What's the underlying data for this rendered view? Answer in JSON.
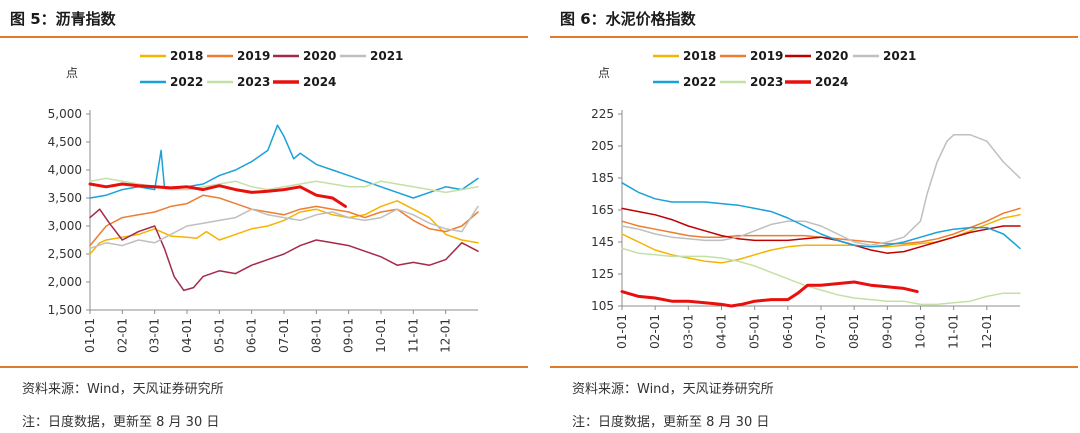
{
  "charts": [
    {
      "figure_title": "图 5：沥青指数",
      "source": "资料来源：Wind，天风证券研究所",
      "note": "注：日度数据，更新至 8 月 30 日"
    },
    {
      "figure_title": "图 6：水泥价格指数",
      "source": "资料来源：Wind，天风证券研究所",
      "note": "注：日度数据，更新至 8 月 30 日"
    }
  ],
  "chart_data": [
    {
      "type": "line",
      "ylabel": "点",
      "ylim": [
        1500,
        5000
      ],
      "yticks": [
        1500,
        2000,
        2500,
        3000,
        3500,
        4000,
        4500,
        5000
      ],
      "ytick_labels": [
        "1,500",
        "2,000",
        "2,500",
        "3,000",
        "3,500",
        "4,000",
        "4,500",
        "5,000"
      ],
      "x_categories": [
        "01-01",
        "02-01",
        "03-01",
        "04-01",
        "05-01",
        "06-01",
        "07-01",
        "08-01",
        "09-01",
        "10-01",
        "11-01",
        "12-01"
      ],
      "legend_position": "top",
      "grid": false,
      "series": [
        {
          "name": "2018",
          "color": "#F5B400",
          "width": 1.5,
          "x": [
            0,
            0.3,
            0.5,
            1,
            1.5,
            2,
            2.5,
            3,
            3.3,
            3.6,
            4,
            4.5,
            5,
            5.5,
            6,
            6.5,
            7,
            7.5,
            8,
            8.5,
            9,
            9.5,
            10,
            10.5,
            11,
            11.5,
            12
          ],
          "y": [
            2500,
            2700,
            2750,
            2800,
            2850,
            2950,
            2820,
            2800,
            2780,
            2900,
            2750,
            2850,
            2950,
            3000,
            3100,
            3250,
            3300,
            3200,
            3150,
            3200,
            3350,
            3450,
            3300,
            3150,
            2850,
            2750,
            2700
          ]
        },
        {
          "name": "2019",
          "color": "#ED7D31",
          "width": 1.5,
          "x": [
            0,
            0.5,
            1,
            1.5,
            2,
            2.5,
            3,
            3.5,
            4,
            4.5,
            5,
            5.5,
            6,
            6.5,
            7,
            7.5,
            8,
            8.5,
            9,
            9.5,
            10,
            10.5,
            11,
            11.5,
            12
          ],
          "y": [
            2650,
            3000,
            3150,
            3200,
            3250,
            3350,
            3400,
            3550,
            3500,
            3400,
            3300,
            3250,
            3200,
            3300,
            3350,
            3300,
            3250,
            3150,
            3250,
            3300,
            3100,
            2950,
            2900,
            3000,
            3250
          ]
        },
        {
          "name": "2020",
          "color": "#A52A4A",
          "width": 1.5,
          "x": [
            0,
            0.3,
            0.6,
            1,
            1.5,
            2,
            2.3,
            2.6,
            2.9,
            3.2,
            3.5,
            4,
            4.5,
            5,
            5.5,
            6,
            6.5,
            7,
            7.5,
            8,
            8.5,
            9,
            9.5,
            10,
            10.5,
            11,
            11.5,
            12
          ],
          "y": [
            3150,
            3300,
            3050,
            2750,
            2900,
            3000,
            2600,
            2100,
            1850,
            1900,
            2100,
            2200,
            2150,
            2300,
            2400,
            2500,
            2650,
            2750,
            2700,
            2650,
            2550,
            2450,
            2300,
            2350,
            2300,
            2400,
            2700,
            2550
          ]
        },
        {
          "name": "2021",
          "color": "#BFBFBF",
          "width": 1.5,
          "x": [
            0,
            0.5,
            1,
            1.5,
            2,
            2.5,
            3,
            3.5,
            4,
            4.5,
            5,
            5.5,
            6,
            6.5,
            7,
            7.5,
            8,
            8.5,
            9,
            9.5,
            10,
            10.5,
            11,
            11.5,
            12
          ],
          "y": [
            2600,
            2700,
            2650,
            2750,
            2700,
            2850,
            3000,
            3050,
            3100,
            3150,
            3300,
            3200,
            3150,
            3100,
            3200,
            3250,
            3150,
            3100,
            3150,
            3300,
            3200,
            3050,
            2950,
            2900,
            3350
          ]
        },
        {
          "name": "2022",
          "color": "#1BA1D9",
          "width": 1.5,
          "x": [
            0,
            0.5,
            1,
            1.5,
            2,
            2.2,
            2.3,
            2.5,
            3,
            3.5,
            4,
            4.5,
            5,
            5.5,
            5.8,
            6,
            6.3,
            6.5,
            7,
            7.5,
            8,
            8.5,
            9,
            9.5,
            10,
            10.5,
            11,
            11.5,
            12
          ],
          "y": [
            3500,
            3550,
            3650,
            3700,
            3650,
            4350,
            3700,
            3650,
            3700,
            3750,
            3900,
            4000,
            4150,
            4350,
            4800,
            4600,
            4200,
            4300,
            4100,
            4000,
            3900,
            3800,
            3700,
            3600,
            3500,
            3600,
            3700,
            3650,
            3850
          ]
        },
        {
          "name": "2023",
          "color": "#C5E0A5",
          "width": 1.5,
          "x": [
            0,
            0.5,
            1,
            1.5,
            2,
            2.5,
            3,
            3.5,
            4,
            4.5,
            5,
            5.5,
            6,
            6.5,
            7,
            7.5,
            8,
            8.5,
            9,
            9.5,
            10,
            10.5,
            11,
            11.5,
            12
          ],
          "y": [
            3800,
            3850,
            3800,
            3750,
            3700,
            3650,
            3650,
            3700,
            3750,
            3800,
            3700,
            3650,
            3700,
            3750,
            3800,
            3750,
            3700,
            3700,
            3800,
            3750,
            3700,
            3650,
            3600,
            3650,
            3700
          ]
        },
        {
          "name": "2024",
          "color": "#E8100F",
          "width": 3,
          "x": [
            0,
            0.5,
            1,
            1.5,
            2,
            2.5,
            3,
            3.5,
            4,
            4.5,
            5,
            5.5,
            6,
            6.5,
            7,
            7.5,
            7.9
          ],
          "y": [
            3750,
            3700,
            3750,
            3720,
            3700,
            3680,
            3700,
            3650,
            3720,
            3650,
            3600,
            3620,
            3650,
            3700,
            3550,
            3500,
            3350
          ]
        }
      ]
    },
    {
      "type": "line",
      "ylabel": "点",
      "ylim": [
        105,
        225
      ],
      "yticks": [
        105,
        125,
        145,
        165,
        185,
        205,
        225
      ],
      "ytick_labels": [
        "105",
        "125",
        "145",
        "165",
        "185",
        "205",
        "225"
      ],
      "x_categories": [
        "01-01",
        "02-01",
        "03-01",
        "04-01",
        "05-01",
        "06-01",
        "07-01",
        "08-01",
        "09-01",
        "10-01",
        "11-01",
        "12-01"
      ],
      "legend_position": "top",
      "grid": false,
      "series": [
        {
          "name": "2018",
          "color": "#F5B400",
          "width": 1.5,
          "x": [
            0,
            0.5,
            1,
            1.5,
            2,
            2.5,
            3,
            3.5,
            4,
            4.5,
            5,
            5.5,
            6,
            6.5,
            7,
            7.5,
            8,
            8.5,
            9,
            9.5,
            10,
            10.5,
            11,
            11.5,
            12
          ],
          "y": [
            150,
            145,
            140,
            137,
            135,
            133,
            132,
            134,
            137,
            140,
            142,
            143,
            143,
            143,
            143,
            142,
            142,
            143,
            144,
            145,
            148,
            152,
            156,
            160,
            162
          ]
        },
        {
          "name": "2019",
          "color": "#ED7D31",
          "width": 1.5,
          "x": [
            0,
            0.5,
            1,
            1.5,
            2,
            2.5,
            3,
            3.5,
            4,
            4.5,
            5,
            5.5,
            6,
            6.5,
            7,
            7.5,
            8,
            8.5,
            9,
            9.5,
            10,
            10.5,
            11,
            11.5,
            12
          ],
          "y": [
            158,
            155,
            153,
            151,
            149,
            148,
            148,
            149,
            149,
            149,
            149,
            149,
            148,
            147,
            146,
            145,
            144,
            144,
            145,
            147,
            150,
            154,
            158,
            163,
            166
          ]
        },
        {
          "name": "2020",
          "color": "#C00000",
          "width": 1.5,
          "x": [
            0,
            0.5,
            1,
            1.5,
            2,
            2.5,
            3,
            3.5,
            4,
            4.5,
            5,
            5.5,
            6,
            6.5,
            7,
            7.5,
            8,
            8.5,
            9,
            9.5,
            10,
            10.5,
            11,
            11.5,
            12
          ],
          "y": [
            166,
            164,
            162,
            159,
            155,
            152,
            149,
            147,
            146,
            146,
            146,
            147,
            148,
            146,
            143,
            140,
            138,
            139,
            142,
            145,
            148,
            151,
            153,
            155,
            155
          ]
        },
        {
          "name": "2021",
          "color": "#BFBFBF",
          "width": 1.5,
          "x": [
            0,
            0.5,
            1,
            1.5,
            2,
            2.5,
            3,
            3.5,
            4,
            4.5,
            5,
            5.5,
            6,
            6.5,
            7,
            7.5,
            8,
            8.5,
            9,
            9.2,
            9.5,
            9.8,
            10,
            10.5,
            11,
            11.5,
            12
          ],
          "y": [
            155,
            153,
            150,
            148,
            147,
            146,
            146,
            148,
            152,
            156,
            158,
            158,
            155,
            150,
            145,
            143,
            145,
            148,
            158,
            175,
            195,
            208,
            212,
            212,
            208,
            195,
            185
          ]
        },
        {
          "name": "2022",
          "color": "#1BA1D9",
          "width": 1.5,
          "x": [
            0,
            0.5,
            1,
            1.5,
            2,
            2.5,
            3,
            3.5,
            4,
            4.5,
            5,
            5.5,
            6,
            6.5,
            7,
            7.5,
            8,
            8.5,
            9,
            9.5,
            10,
            10.5,
            11,
            11.5,
            12
          ],
          "y": [
            182,
            176,
            172,
            170,
            170,
            170,
            169,
            168,
            166,
            164,
            160,
            155,
            150,
            146,
            143,
            142,
            143,
            145,
            148,
            151,
            153,
            154,
            154,
            150,
            141
          ]
        },
        {
          "name": "2023",
          "color": "#C5E0A5",
          "width": 1.5,
          "x": [
            0,
            0.5,
            1,
            1.5,
            2,
            2.5,
            3,
            3.5,
            4,
            4.5,
            5,
            5.5,
            6,
            6.5,
            7,
            7.5,
            8,
            8.5,
            9,
            9.5,
            10,
            10.5,
            11,
            11.5,
            12
          ],
          "y": [
            141,
            138,
            137,
            136,
            136,
            136,
            135,
            133,
            130,
            126,
            122,
            118,
            115,
            112,
            110,
            109,
            108,
            108,
            106,
            106,
            107,
            108,
            111,
            113,
            113
          ]
        },
        {
          "name": "2024",
          "color": "#E8100F",
          "width": 3,
          "x": [
            0,
            0.5,
            1,
            1.5,
            2,
            2.5,
            3,
            3.3,
            3.6,
            4,
            4.5,
            5,
            5.3,
            5.6,
            6,
            6.5,
            7,
            7.5,
            8,
            8.5,
            8.9
          ],
          "y": [
            114,
            111,
            110,
            108,
            108,
            107,
            106,
            105,
            106,
            108,
            109,
            109,
            113,
            118,
            118,
            119,
            120,
            118,
            117,
            116,
            114
          ]
        }
      ]
    }
  ]
}
